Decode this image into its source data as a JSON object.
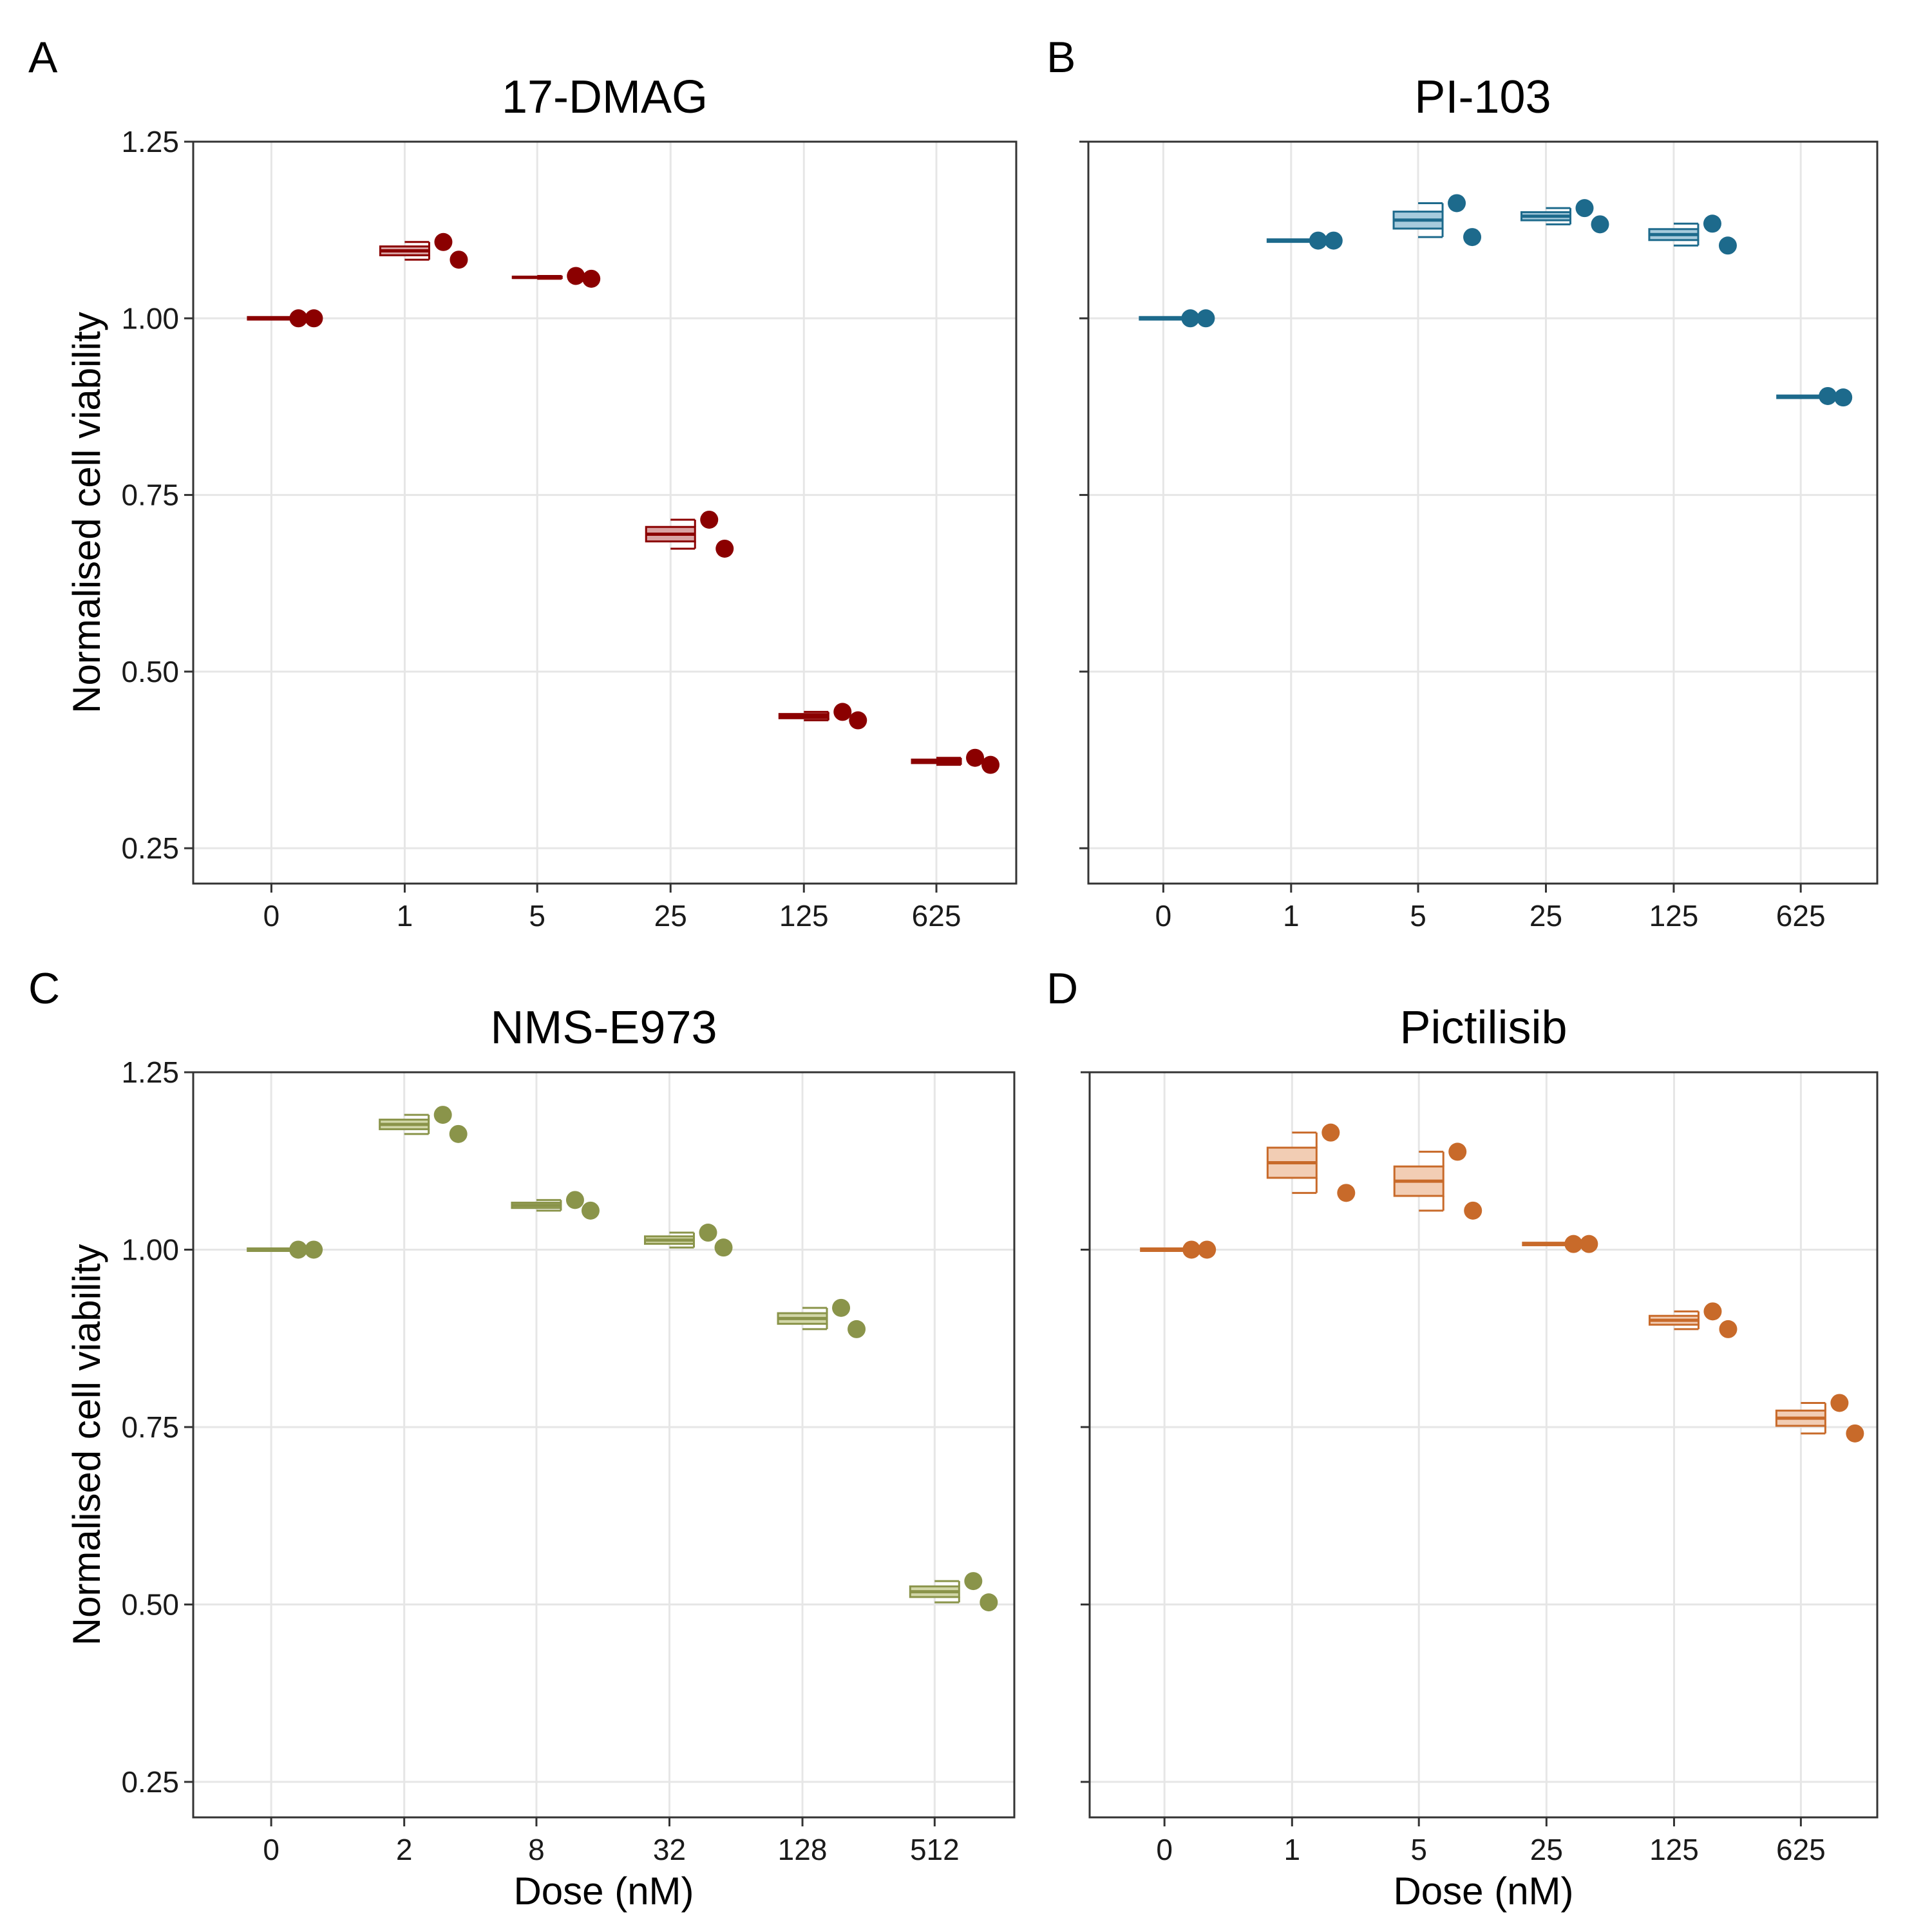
{
  "chart_data": [
    {
      "panel": "A",
      "type": "box+scatter",
      "title": "17-DMAG",
      "xlabel": "",
      "ylabel": "Normalised cell viability",
      "categories": [
        "0",
        "1",
        "5",
        "25",
        "125",
        "625"
      ],
      "ylim": [
        0.2,
        1.25
      ],
      "yticks": [
        "0.25",
        "0.50",
        "0.75",
        "1.00",
        "1.25"
      ],
      "color": "#8B0000",
      "fill": "#D9A3A3",
      "points": [
        [
          1.0,
          1.0
        ],
        [
          1.108,
          1.083
        ],
        [
          1.06,
          1.056
        ],
        [
          0.715,
          0.674
        ],
        [
          0.431,
          0.443
        ],
        [
          0.378,
          0.368
        ]
      ]
    },
    {
      "panel": "B",
      "type": "box+scatter",
      "title": "PI-103",
      "xlabel": "",
      "ylabel": "",
      "categories": [
        "0",
        "1",
        "5",
        "25",
        "125",
        "625"
      ],
      "ylim": [
        0.2,
        1.25
      ],
      "yticks": [],
      "color": "#1D6A8C",
      "fill": "#A7CBDD",
      "points": [
        [
          1.0,
          1.0
        ],
        [
          1.11,
          1.11
        ],
        [
          1.163,
          1.115
        ],
        [
          1.133,
          1.156
        ],
        [
          1.103,
          1.134
        ],
        [
          0.89,
          0.888
        ]
      ]
    },
    {
      "panel": "C",
      "type": "box+scatter",
      "title": "NMS-E973",
      "xlabel": "Dose (nM)",
      "ylabel": "Normalised cell viability",
      "categories": [
        "0",
        "2",
        "8",
        "32",
        "128",
        "512"
      ],
      "ylim": [
        0.2,
        1.25
      ],
      "yticks": [
        "0.25",
        "0.50",
        "0.75",
        "1.00",
        "1.25"
      ],
      "color": "#8A944A",
      "fill": "#D2D7A8",
      "points": [
        [
          1.0,
          1.0
        ],
        [
          1.19,
          1.163
        ],
        [
          1.07,
          1.055
        ],
        [
          1.003,
          1.024
        ],
        [
          0.918,
          0.888
        ],
        [
          0.533,
          0.503
        ]
      ]
    },
    {
      "panel": "D",
      "type": "box+scatter",
      "title": "Pictilisib",
      "xlabel": "Dose (nM)",
      "ylabel": "",
      "categories": [
        "0",
        "1",
        "5",
        "25",
        "125",
        "625"
      ],
      "ylim": [
        0.2,
        1.25
      ],
      "yticks": [],
      "color": "#C86A2A",
      "fill": "#F2CDB4",
      "points": [
        [
          1.0,
          1.0
        ],
        [
          1.165,
          1.08
        ],
        [
          1.138,
          1.055
        ],
        [
          1.008,
          1.008
        ],
        [
          0.888,
          0.913
        ],
        [
          0.741,
          0.784
        ]
      ]
    }
  ]
}
